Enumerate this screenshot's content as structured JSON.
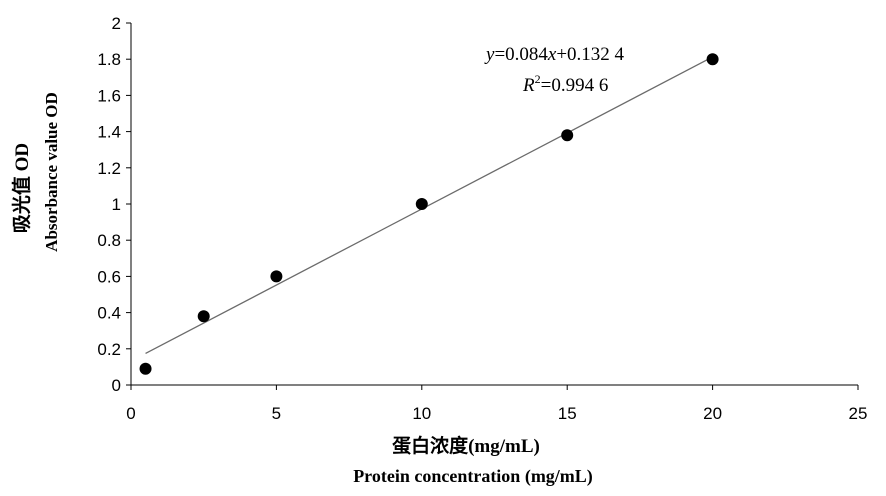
{
  "chart_data": {
    "type": "scatter",
    "x": [
      0.5,
      2.5,
      5,
      10,
      15,
      20
    ],
    "y": [
      0.09,
      0.38,
      0.6,
      1.0,
      1.38,
      1.8
    ],
    "xlim": [
      0,
      25
    ],
    "ylim": [
      0,
      2
    ],
    "xticks": [
      "0",
      "5",
      "10",
      "15",
      "20",
      "25"
    ],
    "yticks": [
      "0",
      "0.2",
      "0.4",
      "0.6",
      "0.8",
      "1",
      "1.2",
      "1.4",
      "1.6",
      "1.8",
      "2"
    ],
    "xlabel_cn": "蛋白浓度(mg/mL)",
    "xlabel_en": "Protein concentration (mg/mL)",
    "ylabel_cn": "吸光值 OD",
    "ylabel_en": "Absorbance value OD",
    "trendline": {
      "slope": 0.084,
      "intercept": 0.1324,
      "x_start": 0.5,
      "x_end": 20
    },
    "equation": {
      "y_var": "y",
      "equals_slope": "=0.084",
      "x_var": "x",
      "plus_intercept": "+0.132 4",
      "r_var": "R",
      "r_sup": "2",
      "r_value": "=0.994 6"
    },
    "grid": false,
    "legend": "none",
    "colors": {
      "marker": "#000000",
      "trendline": "#6b6b6b",
      "axis": "#000000"
    }
  }
}
